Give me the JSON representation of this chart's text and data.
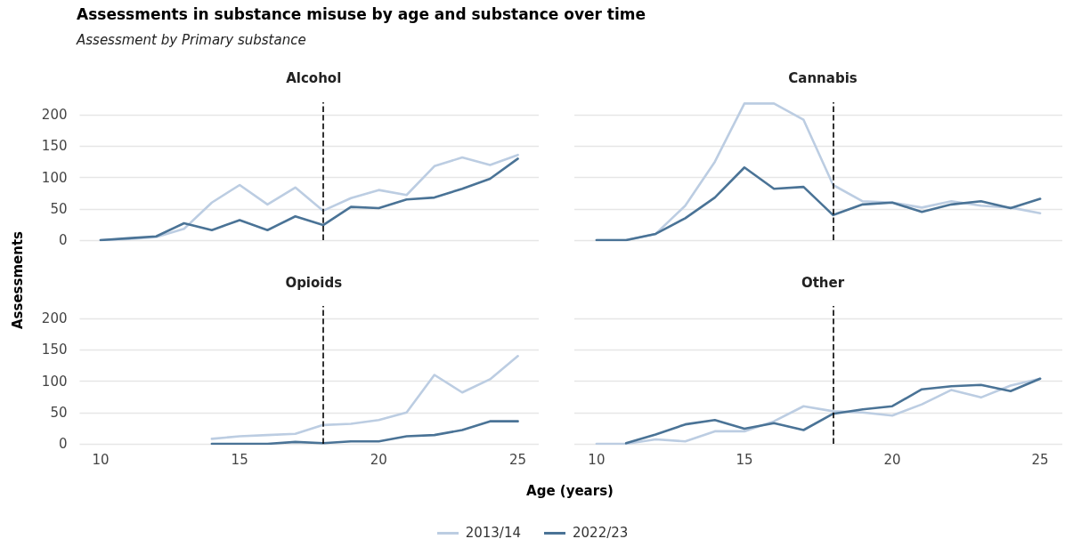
{
  "chart_data": [
    {
      "type": "line",
      "title": "Alcohol",
      "annotations": [
        "Assessments in substance misuse by age and substance over time",
        "Assessment by Primary substance"
      ],
      "ylabel": "Assessments",
      "x": [
        10,
        11,
        12,
        13,
        14,
        15,
        16,
        17,
        18,
        19,
        20,
        21,
        22,
        23,
        24,
        25
      ],
      "xlim": [
        9.25,
        25.75
      ],
      "xticks": [
        10,
        15,
        20,
        25
      ],
      "ylim": [
        0,
        220
      ],
      "yticks": [
        0,
        50,
        100,
        150,
        200
      ],
      "grid": "y",
      "tick_labels": "y",
      "legend": "bottom",
      "series": [
        {
          "name": "2013/14",
          "color": "#bccde2",
          "values": [
            0,
            2,
            5,
            18,
            60,
            88,
            57,
            84,
            47,
            67,
            80,
            72,
            118,
            132,
            120,
            136
          ]
        },
        {
          "name": "2022/23",
          "color": "#4a7396",
          "values": [
            0,
            3,
            6,
            27,
            16,
            32,
            16,
            38,
            24,
            53,
            51,
            65,
            68,
            82,
            98,
            130
          ]
        }
      ],
      "ref_lines": [
        {
          "axis": "x",
          "value": 18,
          "color": "#000000",
          "line_style": "dashed"
        }
      ]
    },
    {
      "type": "line",
      "title": "Cannabis",
      "x": [
        10,
        11,
        12,
        13,
        14,
        15,
        16,
        17,
        18,
        19,
        20,
        21,
        22,
        23,
        24,
        25
      ],
      "xlim": [
        9.25,
        25.75
      ],
      "xticks": [
        10,
        15,
        20,
        25
      ],
      "ylim": [
        0,
        220
      ],
      "yticks": [
        0,
        50,
        100,
        150,
        200
      ],
      "grid": "y",
      "tick_labels": false,
      "series": [
        {
          "name": "2013/14",
          "color": "#bccde2",
          "values": [
            0,
            0,
            10,
            55,
            125,
            218,
            218,
            192,
            88,
            62,
            60,
            52,
            62,
            55,
            52,
            43
          ]
        },
        {
          "name": "2022/23",
          "color": "#4a7396",
          "values": [
            0,
            0,
            10,
            35,
            68,
            116,
            82,
            85,
            40,
            57,
            60,
            45,
            57,
            62,
            51,
            66
          ]
        }
      ],
      "ref_lines": [
        {
          "axis": "x",
          "value": 18,
          "color": "#000000",
          "line_style": "dashed"
        }
      ]
    },
    {
      "type": "line",
      "title": "Opioids",
      "xlabel": "Age (years)",
      "x": [
        14,
        15,
        16,
        17,
        18,
        19,
        20,
        21,
        22,
        23,
        24,
        25
      ],
      "xlim": [
        9.25,
        25.75
      ],
      "xticks": [
        10,
        15,
        20,
        25
      ],
      "ylim": [
        0,
        220
      ],
      "yticks": [
        0,
        50,
        100,
        150,
        200
      ],
      "grid": "y",
      "series": [
        {
          "name": "2013/14",
          "color": "#bccde2",
          "values": [
            8,
            12,
            14,
            16,
            30,
            32,
            38,
            50,
            110,
            82,
            103,
            140
          ]
        },
        {
          "name": "2022/23",
          "color": "#4a7396",
          "values": [
            0,
            0,
            0,
            3,
            1,
            4,
            4,
            12,
            14,
            22,
            36,
            36
          ]
        }
      ],
      "ref_lines": [
        {
          "axis": "x",
          "value": 18,
          "color": "#000000",
          "line_style": "dashed"
        }
      ]
    },
    {
      "type": "line",
      "title": "Other",
      "x": [
        10,
        11,
        12,
        13,
        14,
        15,
        16,
        17,
        18,
        19,
        20,
        21,
        22,
        23,
        24,
        25
      ],
      "xlim": [
        9.25,
        25.75
      ],
      "xticks": [
        10,
        15,
        20,
        25
      ],
      "ylim": [
        0,
        220
      ],
      "yticks": [
        0,
        50,
        100,
        150,
        200
      ],
      "grid": "y",
      "tick_labels": "x",
      "series": [
        {
          "name": "2013/14",
          "color": "#bccde2",
          "values": [
            0,
            0,
            7,
            4,
            20,
            20,
            36,
            60,
            52,
            50,
            45,
            63,
            86,
            74,
            93,
            104
          ]
        },
        {
          "name": "2022/23",
          "color": "#4a7396",
          "values": [
            null,
            1,
            15,
            31,
            38,
            24,
            33,
            22,
            48,
            55,
            60,
            87,
            92,
            94,
            84,
            104
          ]
        }
      ],
      "ref_lines": [
        {
          "axis": "x",
          "value": 18,
          "color": "#000000",
          "line_style": "dashed"
        }
      ]
    }
  ]
}
